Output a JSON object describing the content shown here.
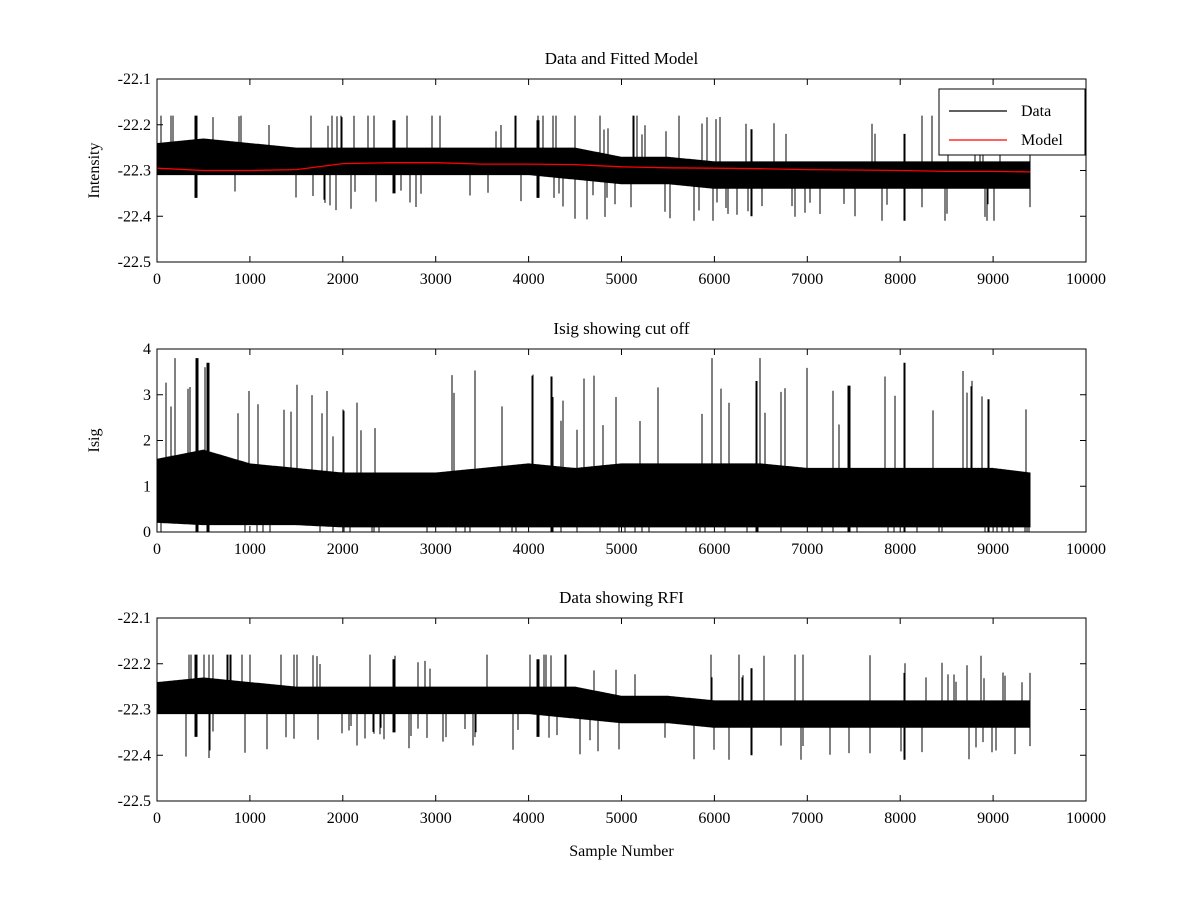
{
  "colors": {
    "data": "#000000",
    "model": "#ff0000",
    "background": "#ffffff"
  },
  "chart_data": [
    {
      "type": "line",
      "title": "Data and Fitted Model",
      "xlabel": "",
      "ylabel": "Intensity",
      "xlim": [
        0,
        10000
      ],
      "ylim": [
        -22.5,
        -22.1
      ],
      "xticks": [
        0,
        1000,
        2000,
        3000,
        4000,
        5000,
        6000,
        7000,
        8000,
        9000,
        10000
      ],
      "yticks": [
        -22.5,
        -22.4,
        -22.3,
        -22.2,
        -22.1
      ],
      "xtick_labels": [
        "0",
        "1000",
        "2000",
        "3000",
        "4000",
        "5000",
        "6000",
        "7000",
        "8000",
        "9000",
        "10000"
      ],
      "ytick_labels": [
        "-22.5",
        "-22.4",
        "-22.3",
        "-22.2",
        "-22.1"
      ],
      "legend": {
        "position": "top-right",
        "entries": [
          "Data",
          "Model"
        ]
      },
      "grid": false,
      "series": [
        {
          "name": "Data",
          "color": "#000000",
          "kind": "noisy-band",
          "x_range": [
            0,
            9400
          ],
          "band_x": [
            0,
            500,
            1000,
            1500,
            2000,
            2500,
            3000,
            3500,
            4000,
            4500,
            5000,
            5500,
            6000,
            6500,
            7000,
            7500,
            8000,
            8500,
            9000,
            9400
          ],
          "band_low": [
            -22.31,
            -22.31,
            -22.31,
            -22.31,
            -22.31,
            -22.31,
            -22.31,
            -22.31,
            -22.31,
            -22.32,
            -22.33,
            -22.33,
            -22.34,
            -22.34,
            -22.34,
            -22.34,
            -22.34,
            -22.34,
            -22.34,
            -22.34
          ],
          "band_high": [
            -22.24,
            -22.23,
            -22.24,
            -22.25,
            -22.25,
            -22.25,
            -22.25,
            -22.25,
            -22.25,
            -22.25,
            -22.27,
            -22.27,
            -22.28,
            -22.28,
            -22.28,
            -22.28,
            -22.28,
            -22.28,
            -22.28,
            -22.28
          ],
          "peaks_x": [
            420,
            2550,
            4100,
            6400,
            8050,
            9400
          ],
          "peaks_low": [
            -22.36,
            -22.35,
            -22.36,
            -22.4,
            -22.41,
            -22.38
          ],
          "peaks_high": [
            -22.18,
            -22.19,
            -22.19,
            -22.21,
            -22.22,
            -22.22
          ],
          "y_min": -22.41,
          "y_max": -22.18
        },
        {
          "name": "Model",
          "color": "#ff0000",
          "kind": "line",
          "x": [
            0,
            500,
            1000,
            1500,
            2000,
            2500,
            3000,
            3500,
            4000,
            4500,
            5000,
            5500,
            6000,
            6500,
            7000,
            7500,
            8000,
            8500,
            9000,
            9400
          ],
          "y": [
            -22.295,
            -22.3,
            -22.3,
            -22.298,
            -22.285,
            -22.283,
            -22.283,
            -22.286,
            -22.286,
            -22.287,
            -22.292,
            -22.294,
            -22.295,
            -22.296,
            -22.298,
            -22.299,
            -22.3,
            -22.302,
            -22.302,
            -22.303
          ]
        }
      ]
    },
    {
      "type": "line",
      "title": "Isig showing cut off",
      "xlabel": "",
      "ylabel": "Isig",
      "xlim": [
        0,
        10000
      ],
      "ylim": [
        0,
        4
      ],
      "xticks": [
        0,
        1000,
        2000,
        3000,
        4000,
        5000,
        6000,
        7000,
        8000,
        9000,
        10000
      ],
      "yticks": [
        0,
        1,
        2,
        3,
        4
      ],
      "xtick_labels": [
        "0",
        "1000",
        "2000",
        "3000",
        "4000",
        "5000",
        "6000",
        "7000",
        "8000",
        "9000",
        "10000"
      ],
      "ytick_labels": [
        "0",
        "1",
        "2",
        "3",
        "4"
      ],
      "grid": false,
      "series": [
        {
          "color": "#000000",
          "kind": "noisy-band",
          "x_range": [
            0,
            9400
          ],
          "band_x": [
            0,
            500,
            1000,
            1500,
            2000,
            2500,
            3000,
            3500,
            4000,
            4500,
            5000,
            5500,
            6000,
            6500,
            7000,
            7500,
            8000,
            8500,
            9000,
            9400
          ],
          "band_low": [
            0.2,
            0.15,
            0.15,
            0.15,
            0.1,
            0.1,
            0.1,
            0.1,
            0.1,
            0.1,
            0.1,
            0.1,
            0.1,
            0.1,
            0.1,
            0.1,
            0.1,
            0.1,
            0.1,
            0.1
          ],
          "band_high": [
            1.6,
            1.8,
            1.5,
            1.4,
            1.3,
            1.3,
            1.3,
            1.4,
            1.5,
            1.4,
            1.5,
            1.5,
            1.5,
            1.5,
            1.4,
            1.4,
            1.4,
            1.4,
            1.4,
            1.3
          ],
          "peaks_x": [
            430,
            550,
            4250,
            6450,
            7450,
            8050,
            8950
          ],
          "peaks_low": [
            0,
            0,
            0,
            0,
            0,
            0,
            0
          ],
          "peaks_high": [
            3.8,
            3.7,
            3.4,
            3.3,
            3.2,
            3.7,
            2.9
          ],
          "y_min": 0,
          "y_max": 3.8
        }
      ]
    },
    {
      "type": "line",
      "title": "Data showing RFI",
      "xlabel": "Sample Number",
      "ylabel": "",
      "xlim": [
        0,
        10000
      ],
      "ylim": [
        -22.5,
        -22.1
      ],
      "xticks": [
        0,
        1000,
        2000,
        3000,
        4000,
        5000,
        6000,
        7000,
        8000,
        9000,
        10000
      ],
      "yticks": [
        -22.5,
        -22.4,
        -22.3,
        -22.2,
        -22.1
      ],
      "xtick_labels": [
        "0",
        "1000",
        "2000",
        "3000",
        "4000",
        "5000",
        "6000",
        "7000",
        "8000",
        "9000",
        "10000"
      ],
      "ytick_labels": [
        "-22.5",
        "-22.4",
        "-22.3",
        "-22.2",
        "-22.1"
      ],
      "grid": false,
      "series": [
        {
          "color": "#000000",
          "kind": "noisy-band",
          "x_range": [
            0,
            9400
          ],
          "band_x": [
            0,
            500,
            1000,
            1500,
            2000,
            2500,
            3000,
            3500,
            4000,
            4500,
            5000,
            5500,
            6000,
            6500,
            7000,
            7500,
            8000,
            8500,
            9000,
            9400
          ],
          "band_low": [
            -22.31,
            -22.31,
            -22.31,
            -22.31,
            -22.31,
            -22.31,
            -22.31,
            -22.31,
            -22.31,
            -22.32,
            -22.33,
            -22.33,
            -22.34,
            -22.34,
            -22.34,
            -22.34,
            -22.34,
            -22.34,
            -22.34,
            -22.34
          ],
          "band_high": [
            -22.24,
            -22.23,
            -22.24,
            -22.25,
            -22.25,
            -22.25,
            -22.25,
            -22.25,
            -22.25,
            -22.25,
            -22.27,
            -22.27,
            -22.28,
            -22.28,
            -22.28,
            -22.28,
            -22.28,
            -22.28,
            -22.28,
            -22.28
          ],
          "peaks_x": [
            420,
            2550,
            4100,
            6400,
            8050,
            9400
          ],
          "peaks_low": [
            -22.36,
            -22.35,
            -22.36,
            -22.4,
            -22.41,
            -22.38
          ],
          "peaks_high": [
            -22.18,
            -22.19,
            -22.19,
            -22.21,
            -22.22,
            -22.22
          ],
          "y_min": -22.41,
          "y_max": -22.18
        }
      ]
    }
  ]
}
